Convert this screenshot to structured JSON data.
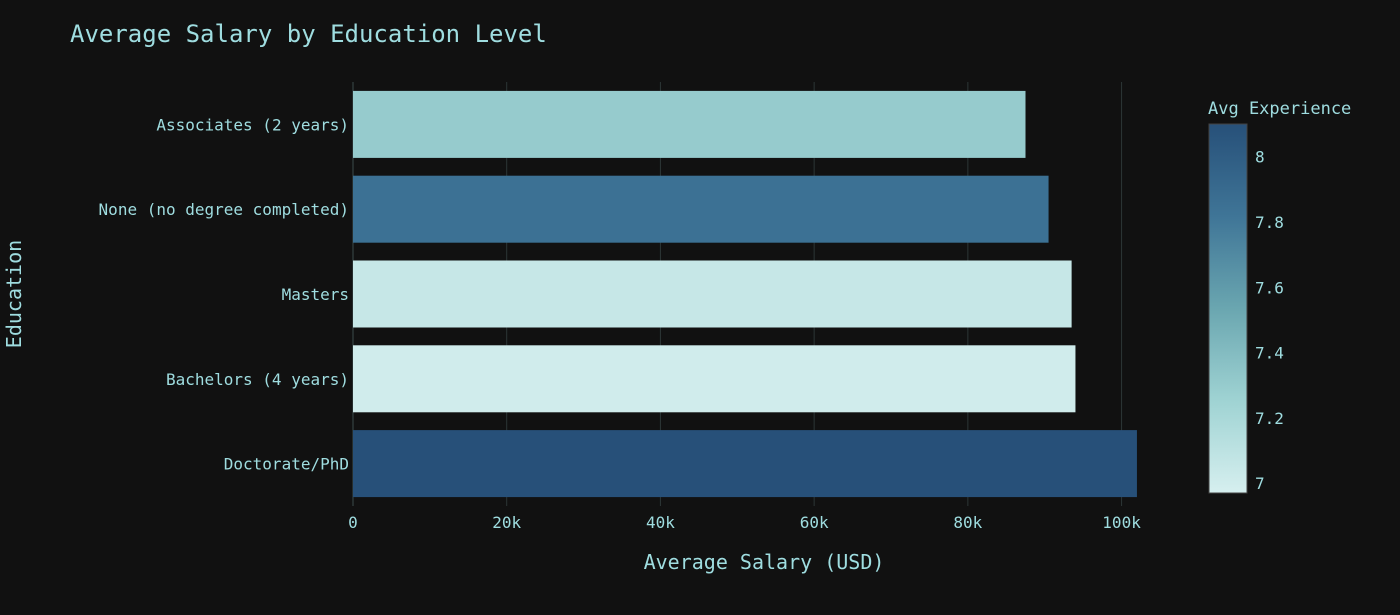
{
  "chart_data": {
    "type": "bar",
    "orientation": "horizontal",
    "title": "Average Salary by Education Level",
    "xlabel": "Average Salary (USD)",
    "ylabel": "Education",
    "xlim": [
      0,
      105000
    ],
    "x_ticks": [
      {
        "value": 0,
        "label": "0"
      },
      {
        "value": 20000,
        "label": "20k"
      },
      {
        "value": 40000,
        "label": "40k"
      },
      {
        "value": 60000,
        "label": "60k"
      },
      {
        "value": 80000,
        "label": "80k"
      },
      {
        "value": 100000,
        "label": "100k"
      }
    ],
    "categories": [
      "Associates (2 years)",
      "None (no degree completed)",
      "Masters",
      "Bachelors (4 years)",
      "Doctorate/PhD"
    ],
    "values": [
      87500,
      90500,
      93500,
      94000,
      102000
    ],
    "color_values": [
      7.3,
      7.85,
      7.05,
      7.0,
      8.1
    ],
    "colorbar": {
      "title": "Avg Experience",
      "range": [
        6.97,
        8.1
      ],
      "ticks": [
        {
          "value": 7,
          "label": "7"
        },
        {
          "value": 7.2,
          "label": "7.2"
        },
        {
          "value": 7.4,
          "label": "7.4"
        },
        {
          "value": 7.6,
          "label": "7.6"
        },
        {
          "value": 7.8,
          "label": "7.8"
        },
        {
          "value": 8,
          "label": "8"
        }
      ],
      "colorscale": [
        "#d6efef",
        "#9fd3d3",
        "#6aa6b0",
        "#3f7597",
        "#275079"
      ]
    },
    "grid": true,
    "background": "#111111",
    "text_color": "#9fdde0"
  }
}
